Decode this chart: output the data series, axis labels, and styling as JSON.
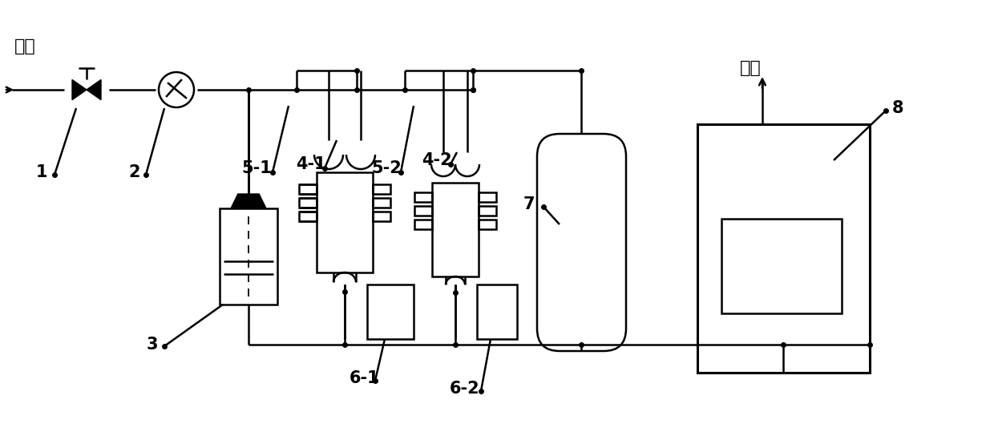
{
  "bg": "#ffffff",
  "lc": "#000000",
  "lw": 1.8,
  "blw": 2.2,
  "jinqi": "进气",
  "chuqi": "出气",
  "num_labels": [
    "1",
    "2",
    "3",
    "4-1",
    "4-2",
    "5-1",
    "5-2",
    "6-1",
    "6-2",
    "7",
    "8"
  ]
}
